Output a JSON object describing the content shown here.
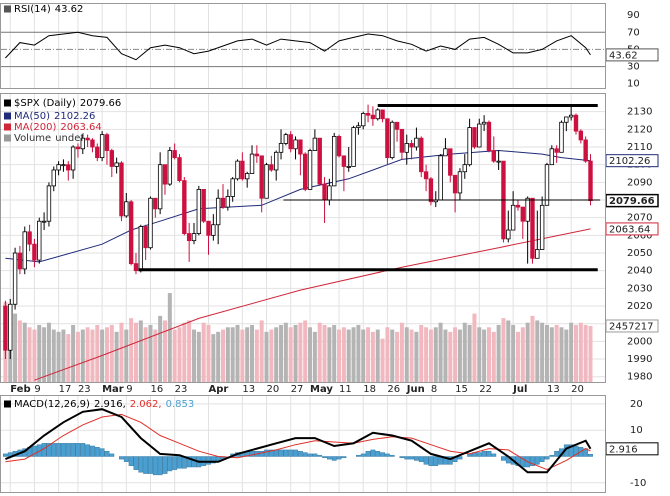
{
  "chart_data": {
    "type": "candlestick",
    "xlim": [
      -0.5,
      124
    ],
    "xticks": [
      {
        "value": 1,
        "label": "Feb"
      },
      {
        "value": 6,
        "label": "9"
      },
      {
        "value": 11,
        "label": "17"
      },
      {
        "value": 15,
        "label": "23"
      },
      {
        "value": 20,
        "label": "Mar"
      },
      {
        "value": 25,
        "label": "9"
      },
      {
        "value": 30,
        "label": "16"
      },
      {
        "value": 35,
        "label": "23"
      },
      {
        "value": 42,
        "label": "Apr"
      },
      {
        "value": 49,
        "label": "13"
      },
      {
        "value": 54,
        "label": "20"
      },
      {
        "value": 59,
        "label": "27"
      },
      {
        "value": 63,
        "label": "May"
      },
      {
        "value": 69,
        "label": "11"
      },
      {
        "value": 74,
        "label": "18"
      },
      {
        "value": 79,
        "label": "26"
      },
      {
        "value": 83,
        "label": "Jun"
      },
      {
        "value": 88,
        "label": "8"
      },
      {
        "value": 93,
        "label": "15"
      },
      {
        "value": 98,
        "label": "22"
      },
      {
        "value": 105,
        "label": "Jul"
      },
      {
        "value": 112,
        "label": "13"
      },
      {
        "value": 117,
        "label": "20"
      }
    ],
    "grid": true,
    "rsi": {
      "title": "RSI(14)",
      "color": "#000000",
      "x": [
        0,
        3,
        6,
        9,
        12,
        15,
        18,
        21,
        24,
        27,
        30,
        33,
        36,
        39,
        42,
        45,
        48,
        51,
        54,
        57,
        60,
        63,
        66,
        69,
        72,
        75,
        78,
        81,
        84,
        87,
        90,
        93,
        96,
        99,
        102,
        105,
        108,
        111,
        114,
        117,
        120,
        121
      ],
      "values": [
        40,
        58,
        55,
        66,
        68,
        70,
        66,
        64,
        45,
        38,
        52,
        55,
        52,
        45,
        48,
        54,
        60,
        62,
        55,
        62,
        60,
        58,
        48,
        60,
        64,
        68,
        66,
        60,
        56,
        48,
        54,
        50,
        62,
        64,
        56,
        46,
        46,
        50,
        60,
        66,
        52,
        43.62
      ],
      "ylim": [
        5,
        103
      ],
      "yticks": [
        10,
        30,
        50,
        70,
        90
      ],
      "levels": [
        30,
        70
      ],
      "midline": 50
    },
    "price": {
      "name": "$SPX (Daily)",
      "up_color": "#ffffff",
      "down_color": "#cc1040",
      "ylim": [
        1977,
        2140
      ],
      "yticks": [
        1980,
        1990,
        2000,
        2010,
        2020,
        2030,
        2040,
        2050,
        2060,
        2070,
        2080,
        2090,
        2100,
        2110,
        2120,
        2130
      ],
      "open": [
        2020,
        1995,
        2021,
        2050,
        2041,
        2062,
        2055,
        2046,
        2068,
        2068,
        2088,
        2097,
        2100,
        2100,
        2097,
        2110,
        2109,
        2115,
        2114,
        2110,
        2104,
        2117,
        2108,
        2099,
        2101,
        2071,
        2079,
        2044,
        2040,
        2065,
        2053,
        2081,
        2075,
        2100,
        2089,
        2108,
        2104,
        2091,
        2061,
        2057,
        2061,
        2086,
        2068,
        2060,
        2066,
        2081,
        2076,
        2082,
        2092,
        2102,
        2092,
        2095,
        2106,
        2105,
        2081,
        2100,
        2097,
        2107,
        2112,
        2117,
        2109,
        2114,
        2106,
        2086,
        2108,
        2115,
        2089,
        2080,
        2088,
        2116,
        2105,
        2099,
        2099,
        2121,
        2122,
        2129,
        2128,
        2126,
        2131,
        2126,
        2104,
        2124,
        2120,
        2107,
        2112,
        2110,
        2115,
        2096,
        2092,
        2079,
        2080,
        2105,
        2109,
        2094,
        2084,
        2096,
        2100,
        2121,
        2110,
        2123,
        2124,
        2108,
        2102,
        2102,
        2058,
        2063,
        2077,
        2076,
        2068,
        2081,
        2047,
        2052,
        2077,
        2100,
        2109,
        2107,
        2124,
        2127,
        2128,
        2119,
        2114,
        2102
      ],
      "high": [
        2023,
        2024,
        2053,
        2054,
        2065,
        2066,
        2058,
        2070,
        2073,
        2090,
        2099,
        2102,
        2103,
        2102,
        2111,
        2112,
        2117,
        2117,
        2115,
        2112,
        2119,
        2118,
        2109,
        2104,
        2102,
        2084,
        2080,
        2050,
        2066,
        2066,
        2082,
        2081,
        2107,
        2100,
        2110,
        2112,
        2106,
        2093,
        2067,
        2067,
        2088,
        2086,
        2068,
        2072,
        2086,
        2089,
        2086,
        2093,
        2103,
        2107,
        2096,
        2111,
        2111,
        2105,
        2101,
        2105,
        2108,
        2120,
        2118,
        2119,
        2116,
        2114,
        2107,
        2109,
        2120,
        2115,
        2093,
        2092,
        2118,
        2117,
        2105,
        2110,
        2122,
        2124,
        2130,
        2134,
        2133,
        2132,
        2131,
        2126,
        2125,
        2124,
        2120,
        2117,
        2114,
        2121,
        2116,
        2100,
        2093,
        2085,
        2106,
        2115,
        2109,
        2094,
        2098,
        2106,
        2126,
        2121,
        2126,
        2128,
        2125,
        2116,
        2108,
        2102,
        2074,
        2085,
        2080,
        2076,
        2082,
        2081,
        2074,
        2082,
        2101,
        2111,
        2111,
        2125,
        2127,
        2133,
        2129,
        2120,
        2116,
        2106
      ],
      "low": [
        1990,
        1990,
        2018,
        2038,
        2038,
        2051,
        2042,
        2044,
        2063,
        2065,
        2085,
        2094,
        2096,
        2091,
        2092,
        2104,
        2106,
        2110,
        2107,
        2102,
        2102,
        2100,
        2093,
        2095,
        2068,
        2070,
        2043,
        2038,
        2039,
        2046,
        2052,
        2070,
        2072,
        2083,
        2088,
        2103,
        2090,
        2060,
        2045,
        2055,
        2060,
        2067,
        2049,
        2057,
        2055,
        2075,
        2074,
        2079,
        2091,
        2091,
        2087,
        2095,
        2101,
        2073,
        2081,
        2096,
        2091,
        2103,
        2111,
        2107,
        2103,
        2094,
        2085,
        2086,
        2108,
        2088,
        2067,
        2077,
        2088,
        2104,
        2085,
        2096,
        2099,
        2117,
        2120,
        2124,
        2122,
        2125,
        2124,
        2100,
        2103,
        2113,
        2103,
        2100,
        2103,
        2108,
        2093,
        2085,
        2077,
        2076,
        2080,
        2105,
        2090,
        2073,
        2080,
        2092,
        2099,
        2109,
        2110,
        2119,
        2107,
        2101,
        2097,
        2056,
        2056,
        2063,
        2074,
        2058,
        2044,
        2044,
        2047,
        2052,
        2077,
        2100,
        2101,
        2107,
        2119,
        2125,
        2117,
        2112,
        2101,
        2077
      ],
      "close": [
        1995,
        2021,
        2050,
        2041,
        2062,
        2055,
        2046,
        2068,
        2068,
        2088,
        2097,
        2100,
        2100,
        2097,
        2110,
        2109,
        2115,
        2114,
        2110,
        2104,
        2117,
        2108,
        2099,
        2101,
        2071,
        2079,
        2044,
        2040,
        2065,
        2053,
        2081,
        2075,
        2100,
        2089,
        2108,
        2104,
        2091,
        2061,
        2057,
        2061,
        2086,
        2068,
        2060,
        2066,
        2081,
        2076,
        2082,
        2092,
        2102,
        2092,
        2095,
        2106,
        2105,
        2081,
        2100,
        2097,
        2107,
        2112,
        2117,
        2109,
        2114,
        2106,
        2086,
        2108,
        2115,
        2089,
        2080,
        2088,
        2116,
        2105,
        2099,
        2099,
        2121,
        2122,
        2129,
        2128,
        2126,
        2131,
        2126,
        2104,
        2124,
        2120,
        2107,
        2112,
        2110,
        2115,
        2096,
        2092,
        2079,
        2080,
        2105,
        2109,
        2094,
        2084,
        2096,
        2100,
        2121,
        2110,
        2123,
        2124,
        2108,
        2102,
        2102,
        2058,
        2063,
        2077,
        2076,
        2068,
        2081,
        2047,
        2052,
        2077,
        2100,
        2109,
        2107,
        2124,
        2127,
        2128,
        2119,
        2114,
        2102,
        2079.66
      ]
    },
    "indicators": [
      {
        "name": "MA(50)",
        "color": "#1f2a78",
        "x": [
          0,
          7,
          20,
          26,
          32,
          40,
          53,
          61,
          71,
          82,
          92,
          102,
          111,
          115,
          121
        ],
        "values": [
          2047,
          2045,
          2055,
          2063,
          2068,
          2075,
          2077,
          2086,
          2092,
          2103,
          2106,
          2108,
          2106,
          2104,
          2102.26
        ]
      },
      {
        "name": "MA(200)",
        "color": "#d0263a",
        "x": [
          6,
          20,
          40,
          61,
          82,
          102,
          121
        ],
        "values": [
          1978,
          1992,
          2013,
          2029,
          2042,
          2053,
          2063.64
        ]
      }
    ],
    "volume": {
      "name": "Volume",
      "legend_value": "undef",
      "up_color": "#b4b4b4",
      "down_color": "#f2b8c0",
      "ylim": [
        0,
        5000000
      ],
      "values": [
        3500000,
        2800000,
        3000000,
        2700000,
        2600000,
        2400000,
        2300000,
        2500000,
        2400000,
        2600000,
        2300000,
        2200000,
        2300000,
        2100000,
        2500000,
        2200000,
        2300000,
        2400000,
        2300000,
        2500000,
        2300000,
        2400000,
        2500000,
        2200000,
        2600000,
        2300000,
        2800000,
        2600000,
        2700000,
        2400000,
        2500000,
        2300000,
        2900000,
        2700000,
        3900000,
        2300000,
        2400000,
        2600000,
        2700000,
        2300000,
        2200000,
        2600000,
        2500000,
        2100000,
        2200000,
        2300000,
        2400000,
        2400000,
        2500000,
        2300000,
        2400000,
        2500000,
        2300000,
        2700000,
        2200000,
        2300000,
        2400000,
        2500000,
        2600000,
        2400000,
        2500000,
        2600000,
        2700000,
        2400000,
        2200000,
        2600000,
        2500000,
        2400000,
        2500000,
        2300000,
        2400000,
        2300000,
        2400000,
        2500000,
        2300000,
        2400000,
        2200000,
        2300000,
        1900000,
        2400000,
        2300000,
        2200000,
        2600000,
        2400000,
        2300000,
        2200000,
        2500000,
        2400000,
        2300000,
        2400000,
        2600000,
        2300000,
        2200000,
        2400000,
        2300000,
        2600000,
        2500000,
        3000000,
        2400000,
        2300000,
        2400000,
        2200000,
        2500000,
        2800000,
        2700000,
        2500000,
        2200000,
        2400000,
        2600000,
        2900000,
        2700000,
        2600000,
        2500000,
        2400000,
        2500000,
        2400000,
        2300000,
        2600000,
        2500000,
        2600000,
        2500000,
        2457217
      ]
    },
    "trend_lines": [
      {
        "value": 2133.5,
        "from": 77,
        "to": 122.5,
        "thick": true
      },
      {
        "value": 2040.5,
        "from": 27.5,
        "to": 122.5,
        "thick": true
      },
      {
        "value": 2080,
        "from": 57.5,
        "to": 123,
        "thick": false
      }
    ],
    "macd": {
      "title": "MACD(12,26,9)",
      "legend_labels": [
        "2.916,",
        "2.062,",
        "0.853"
      ],
      "ylim": [
        -13.5,
        23
      ],
      "yticks": [
        -10,
        10,
        20
      ],
      "series": [
        {
          "name": "MACD",
          "color": "#000000",
          "x": [
            0,
            4,
            8,
            12,
            16,
            20,
            24,
            28,
            32,
            36,
            40,
            44,
            48,
            52,
            56,
            60,
            64,
            68,
            72,
            76,
            80,
            84,
            88,
            92,
            96,
            100,
            104,
            108,
            112,
            116,
            120,
            121
          ],
          "values": [
            -1,
            2,
            8,
            13,
            17,
            18,
            15,
            7,
            1,
            0.5,
            -2,
            -2,
            1,
            3,
            5,
            7,
            7,
            4,
            5,
            9,
            8,
            6,
            1,
            -1,
            2,
            5,
            0,
            -6,
            -6,
            3,
            6,
            2.916
          ]
        },
        {
          "name": "Signal",
          "color": "#e0302a",
          "x": [
            0,
            4,
            8,
            12,
            16,
            20,
            24,
            28,
            32,
            36,
            40,
            44,
            48,
            52,
            56,
            60,
            64,
            68,
            72,
            76,
            80,
            84,
            88,
            92,
            96,
            100,
            104,
            108,
            112,
            116,
            120,
            121
          ],
          "values": [
            -2,
            -1,
            3,
            8,
            12,
            15,
            16,
            13,
            8,
            5,
            2,
            0,
            -0.5,
            1,
            2.5,
            4.5,
            6,
            5.5,
            5,
            6.5,
            7.5,
            7,
            4.5,
            2,
            1,
            3,
            2.5,
            -2,
            -5,
            -1.5,
            3,
            2.062
          ]
        }
      ],
      "histogram": {
        "color": "#4a9fd0",
        "values": [
          1,
          1.5,
          2,
          2.5,
          3,
          3.5,
          4,
          4.5,
          5,
          5,
          5,
          5,
          5,
          5,
          5,
          5,
          5,
          4.5,
          4,
          3.5,
          3,
          2,
          1,
          0,
          -1,
          -2,
          -3.5,
          -5,
          -6,
          -6.5,
          -6.5,
          -7,
          -7,
          -6.5,
          -5.5,
          -5,
          -4.5,
          -4.5,
          -4,
          -4,
          -4,
          -3.5,
          -3,
          -2.5,
          -2,
          -1,
          0,
          1,
          1.5,
          1.5,
          2,
          2,
          2,
          2,
          2.5,
          2.5,
          2.5,
          2.5,
          2.5,
          2.5,
          2.5,
          2,
          1.5,
          1,
          1,
          0.5,
          -0.5,
          -1,
          -1.5,
          -1,
          -0.5,
          0,
          0,
          0.5,
          1,
          2,
          2.5,
          2,
          1.5,
          1,
          0.5,
          0,
          -0.5,
          -1,
          -1,
          -1.5,
          -2,
          -3,
          -3.5,
          -3.5,
          -3,
          -3,
          -3,
          -2,
          -1,
          0,
          1,
          1.5,
          1.5,
          2,
          2,
          1,
          0,
          -1.5,
          -2.5,
          -3,
          -3.5,
          -4,
          -4,
          -3.5,
          -3,
          -2,
          -1,
          0.5,
          2,
          3,
          4.5,
          4.5,
          4,
          3.5,
          3,
          0.853
        ]
      }
    }
  }
}
